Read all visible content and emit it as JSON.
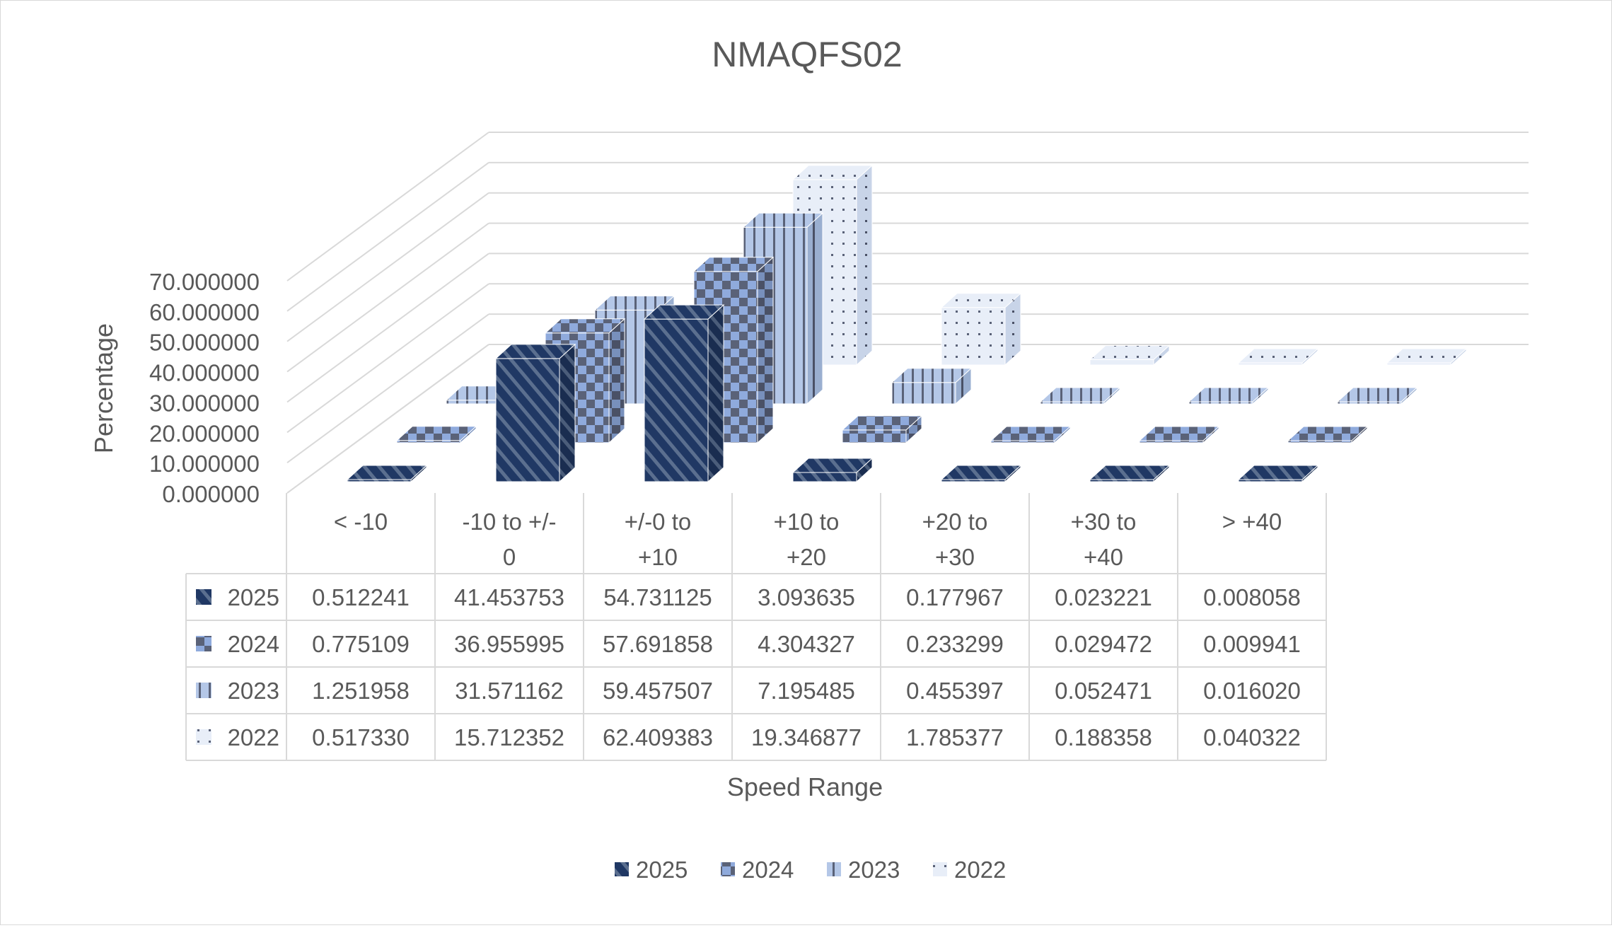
{
  "chart_data": {
    "type": "bar",
    "subtype": "3d-clustered-column-with-data-table",
    "title": "NMAQFS02",
    "xlabel": "Speed Range",
    "ylabel": "Percentage",
    "ylim": [
      0,
      70
    ],
    "y_ticks": [
      "0.000000",
      "10.000000",
      "20.000000",
      "30.000000",
      "40.000000",
      "50.000000",
      "60.000000",
      "70.000000"
    ],
    "categories": [
      [
        "< -10"
      ],
      [
        "-10 to +/-",
        "0"
      ],
      [
        "+/-0 to",
        "+10"
      ],
      [
        "+10 to",
        "+20"
      ],
      [
        "+20 to",
        "+30"
      ],
      [
        "+30 to",
        "+40"
      ],
      [
        "> +40"
      ]
    ],
    "series": [
      {
        "name": "2025",
        "values": [
          0.512241,
          41.453753,
          54.731125,
          3.093635,
          0.177967,
          0.023221,
          0.008058
        ],
        "display": [
          "0.512241",
          "41.453753",
          "54.731125",
          "3.093635",
          "0.177967",
          "0.023221",
          "0.008058"
        ],
        "color": "#203864",
        "pattern": "diagonal-stripes"
      },
      {
        "name": "2024",
        "values": [
          0.775109,
          36.955995,
          57.691858,
          4.304327,
          0.233299,
          0.029472,
          0.009941
        ],
        "display": [
          "0.775109",
          "36.955995",
          "57.691858",
          "4.304327",
          "0.233299",
          "0.029472",
          "0.009941"
        ],
        "color": "#8faadc",
        "pattern": "checkerboard"
      },
      {
        "name": "2023",
        "values": [
          1.251958,
          31.571162,
          59.457507,
          7.195485,
          0.455397,
          0.052471,
          0.01602
        ],
        "display": [
          "1.251958",
          "31.571162",
          "59.457507",
          "7.195485",
          "0.455397",
          "0.052471",
          "0.016020"
        ],
        "color": "#b4c7e7",
        "pattern": "vertical-stripes"
      },
      {
        "name": "2022",
        "values": [
          0.51733,
          15.712352,
          62.409383,
          19.346877,
          1.785377,
          0.188358,
          0.040322
        ],
        "display": [
          "0.517330",
          "15.712352",
          "62.409383",
          "19.346877",
          "1.785377",
          "0.188358",
          "0.040322"
        ],
        "color": "#dae3f3",
        "pattern": "dots"
      }
    ],
    "legend_position": "bottom",
    "grid": true,
    "data_table": true
  }
}
